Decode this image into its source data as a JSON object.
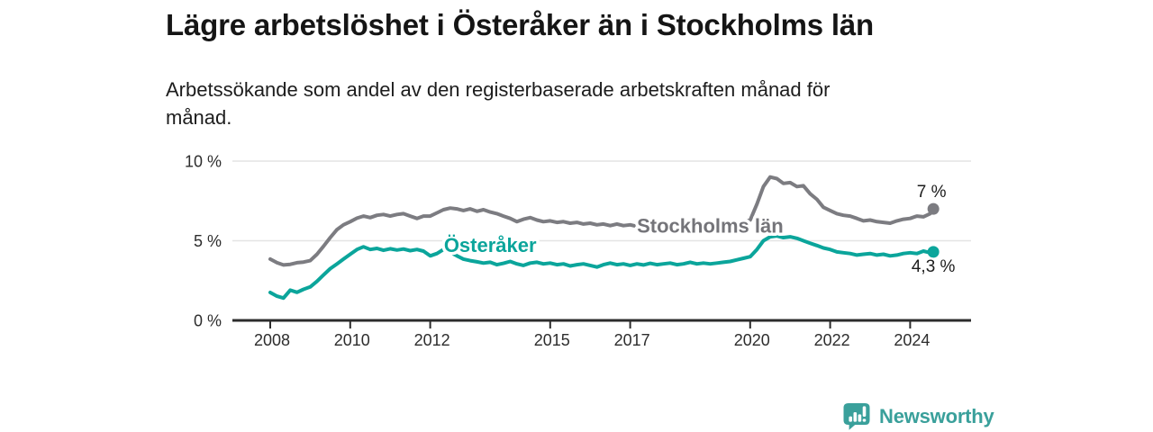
{
  "chart_data": {
    "type": "line",
    "title": "Lägre arbetslöshet i Österåker än i Stockholms län",
    "subtitle": "Arbetssökande som andel av den registerbaserade arbetskraften månad för\nmånad.",
    "unit": "%",
    "xlabel": "",
    "ylabel": "",
    "xlim": [
      2007.05,
      2025.5
    ],
    "ylim": [
      0,
      10
    ],
    "grid": "horizontal",
    "y_ticks": [
      {
        "v": 0,
        "label": "0 %"
      },
      {
        "v": 5,
        "label": "5 %"
      },
      {
        "v": 10,
        "label": "10 %"
      }
    ],
    "x_ticks": [
      {
        "v": 2008,
        "label": "2008"
      },
      {
        "v": 2010,
        "label": "2010"
      },
      {
        "v": 2012,
        "label": "2012"
      },
      {
        "v": 2015,
        "label": "2015"
      },
      {
        "v": 2017,
        "label": "2017"
      },
      {
        "v": 2020,
        "label": "2020"
      },
      {
        "v": 2022,
        "label": "2022"
      },
      {
        "v": 2024,
        "label": "2024"
      }
    ],
    "series": [
      {
        "name": "Stockholms län",
        "color": "#7c7c81",
        "label_color": "#747479",
        "inline_label": {
          "text": "Stockholms län",
          "x": 2019.0,
          "y": 5.5
        },
        "end_dot": true,
        "end_label": {
          "text": "7 %",
          "position": "above"
        },
        "points": [
          [
            2008.0,
            3.85
          ],
          [
            2008.17,
            3.62
          ],
          [
            2008.33,
            3.48
          ],
          [
            2008.5,
            3.52
          ],
          [
            2008.67,
            3.62
          ],
          [
            2008.83,
            3.66
          ],
          [
            2009.0,
            3.75
          ],
          [
            2009.17,
            4.15
          ],
          [
            2009.33,
            4.65
          ],
          [
            2009.5,
            5.2
          ],
          [
            2009.67,
            5.7
          ],
          [
            2009.83,
            6.0
          ],
          [
            2010.0,
            6.2
          ],
          [
            2010.17,
            6.42
          ],
          [
            2010.33,
            6.55
          ],
          [
            2010.5,
            6.45
          ],
          [
            2010.67,
            6.6
          ],
          [
            2010.83,
            6.65
          ],
          [
            2011.0,
            6.55
          ],
          [
            2011.17,
            6.65
          ],
          [
            2011.33,
            6.7
          ],
          [
            2011.5,
            6.55
          ],
          [
            2011.67,
            6.4
          ],
          [
            2011.83,
            6.55
          ],
          [
            2012.0,
            6.55
          ],
          [
            2012.17,
            6.75
          ],
          [
            2012.33,
            6.95
          ],
          [
            2012.5,
            7.05
          ],
          [
            2012.67,
            7.0
          ],
          [
            2012.83,
            6.9
          ],
          [
            2013.0,
            7.0
          ],
          [
            2013.17,
            6.85
          ],
          [
            2013.33,
            6.95
          ],
          [
            2013.5,
            6.8
          ],
          [
            2013.67,
            6.7
          ],
          [
            2013.83,
            6.55
          ],
          [
            2014.0,
            6.4
          ],
          [
            2014.17,
            6.2
          ],
          [
            2014.33,
            6.35
          ],
          [
            2014.5,
            6.45
          ],
          [
            2014.67,
            6.3
          ],
          [
            2014.83,
            6.2
          ],
          [
            2015.0,
            6.25
          ],
          [
            2015.17,
            6.15
          ],
          [
            2015.33,
            6.2
          ],
          [
            2015.5,
            6.1
          ],
          [
            2015.67,
            6.15
          ],
          [
            2015.83,
            6.05
          ],
          [
            2016.0,
            6.1
          ],
          [
            2016.17,
            6.0
          ],
          [
            2016.33,
            6.05
          ],
          [
            2016.5,
            5.95
          ],
          [
            2016.67,
            6.05
          ],
          [
            2016.83,
            5.95
          ],
          [
            2017.0,
            6.0
          ],
          [
            2017.17,
            5.9
          ],
          [
            2017.33,
            5.95
          ],
          [
            2017.5,
            6.0
          ],
          [
            2017.67,
            5.9
          ],
          [
            2017.83,
            5.95
          ],
          [
            2018.0,
            6.0
          ],
          [
            2018.17,
            5.9
          ],
          [
            2018.33,
            5.95
          ],
          [
            2018.5,
            6.05
          ],
          [
            2018.67,
            5.95
          ],
          [
            2018.83,
            6.0
          ],
          [
            2019.0,
            6.05
          ],
          [
            2019.17,
            5.95
          ],
          [
            2019.33,
            6.0
          ],
          [
            2019.5,
            6.1
          ],
          [
            2019.67,
            6.05
          ],
          [
            2019.83,
            6.15
          ],
          [
            2020.0,
            6.3
          ],
          [
            2020.17,
            7.3
          ],
          [
            2020.33,
            8.4
          ],
          [
            2020.5,
            9.0
          ],
          [
            2020.67,
            8.9
          ],
          [
            2020.83,
            8.6
          ],
          [
            2021.0,
            8.65
          ],
          [
            2021.17,
            8.4
          ],
          [
            2021.33,
            8.45
          ],
          [
            2021.5,
            7.95
          ],
          [
            2021.67,
            7.6
          ],
          [
            2021.83,
            7.1
          ],
          [
            2022.0,
            6.9
          ],
          [
            2022.17,
            6.7
          ],
          [
            2022.33,
            6.6
          ],
          [
            2022.5,
            6.55
          ],
          [
            2022.67,
            6.4
          ],
          [
            2022.83,
            6.25
          ],
          [
            2023.0,
            6.3
          ],
          [
            2023.17,
            6.2
          ],
          [
            2023.33,
            6.15
          ],
          [
            2023.5,
            6.1
          ],
          [
            2023.67,
            6.25
          ],
          [
            2023.83,
            6.35
          ],
          [
            2024.0,
            6.4
          ],
          [
            2024.17,
            6.55
          ],
          [
            2024.33,
            6.5
          ],
          [
            2024.5,
            6.7
          ],
          [
            2024.58,
            7.0
          ]
        ]
      },
      {
        "name": "Österåker",
        "color": "#0ba59b",
        "label_color": "#0ba59b",
        "inline_label": {
          "text": "Österåker",
          "x": 2013.5,
          "y": 4.3
        },
        "end_dot": true,
        "end_label": {
          "text": "4,3 %",
          "position": "below"
        },
        "points": [
          [
            2008.0,
            1.75
          ],
          [
            2008.17,
            1.52
          ],
          [
            2008.33,
            1.4
          ],
          [
            2008.5,
            1.9
          ],
          [
            2008.67,
            1.76
          ],
          [
            2008.83,
            1.95
          ],
          [
            2009.0,
            2.1
          ],
          [
            2009.17,
            2.45
          ],
          [
            2009.33,
            2.85
          ],
          [
            2009.5,
            3.25
          ],
          [
            2009.67,
            3.55
          ],
          [
            2009.83,
            3.85
          ],
          [
            2010.0,
            4.15
          ],
          [
            2010.17,
            4.45
          ],
          [
            2010.33,
            4.62
          ],
          [
            2010.5,
            4.45
          ],
          [
            2010.67,
            4.52
          ],
          [
            2010.83,
            4.4
          ],
          [
            2011.0,
            4.5
          ],
          [
            2011.17,
            4.42
          ],
          [
            2011.33,
            4.48
          ],
          [
            2011.5,
            4.38
          ],
          [
            2011.67,
            4.45
          ],
          [
            2011.83,
            4.35
          ],
          [
            2012.0,
            4.05
          ],
          [
            2012.17,
            4.2
          ],
          [
            2012.33,
            4.45
          ],
          [
            2012.5,
            4.28
          ],
          [
            2012.67,
            4.05
          ],
          [
            2012.83,
            3.85
          ],
          [
            2013.0,
            3.75
          ],
          [
            2013.17,
            3.68
          ],
          [
            2013.33,
            3.6
          ],
          [
            2013.5,
            3.65
          ],
          [
            2013.67,
            3.5
          ],
          [
            2013.83,
            3.58
          ],
          [
            2014.0,
            3.7
          ],
          [
            2014.17,
            3.55
          ],
          [
            2014.33,
            3.45
          ],
          [
            2014.5,
            3.6
          ],
          [
            2014.67,
            3.65
          ],
          [
            2014.83,
            3.55
          ],
          [
            2015.0,
            3.6
          ],
          [
            2015.17,
            3.5
          ],
          [
            2015.33,
            3.55
          ],
          [
            2015.5,
            3.42
          ],
          [
            2015.67,
            3.5
          ],
          [
            2015.83,
            3.55
          ],
          [
            2016.0,
            3.45
          ],
          [
            2016.17,
            3.35
          ],
          [
            2016.33,
            3.5
          ],
          [
            2016.5,
            3.6
          ],
          [
            2016.67,
            3.5
          ],
          [
            2016.83,
            3.55
          ],
          [
            2017.0,
            3.45
          ],
          [
            2017.17,
            3.55
          ],
          [
            2017.33,
            3.48
          ],
          [
            2017.5,
            3.58
          ],
          [
            2017.67,
            3.5
          ],
          [
            2017.83,
            3.55
          ],
          [
            2018.0,
            3.6
          ],
          [
            2018.17,
            3.5
          ],
          [
            2018.33,
            3.55
          ],
          [
            2018.5,
            3.65
          ],
          [
            2018.67,
            3.55
          ],
          [
            2018.83,
            3.6
          ],
          [
            2019.0,
            3.55
          ],
          [
            2019.17,
            3.6
          ],
          [
            2019.33,
            3.65
          ],
          [
            2019.5,
            3.7
          ],
          [
            2019.67,
            3.8
          ],
          [
            2019.83,
            3.9
          ],
          [
            2020.0,
            4.0
          ],
          [
            2020.17,
            4.45
          ],
          [
            2020.33,
            5.0
          ],
          [
            2020.5,
            5.25
          ],
          [
            2020.67,
            5.3
          ],
          [
            2020.83,
            5.2
          ],
          [
            2021.0,
            5.25
          ],
          [
            2021.17,
            5.15
          ],
          [
            2021.33,
            5.0
          ],
          [
            2021.5,
            4.85
          ],
          [
            2021.67,
            4.7
          ],
          [
            2021.83,
            4.55
          ],
          [
            2022.0,
            4.45
          ],
          [
            2022.17,
            4.3
          ],
          [
            2022.33,
            4.25
          ],
          [
            2022.5,
            4.2
          ],
          [
            2022.67,
            4.1
          ],
          [
            2022.83,
            4.15
          ],
          [
            2023.0,
            4.2
          ],
          [
            2023.17,
            4.1
          ],
          [
            2023.33,
            4.15
          ],
          [
            2023.5,
            4.05
          ],
          [
            2023.67,
            4.1
          ],
          [
            2023.83,
            4.2
          ],
          [
            2024.0,
            4.25
          ],
          [
            2024.17,
            4.2
          ],
          [
            2024.33,
            4.35
          ],
          [
            2024.5,
            4.25
          ],
          [
            2024.58,
            4.3
          ]
        ]
      }
    ],
    "colors": {
      "grid": "#e4e4e4",
      "axis": "#2c2c2c",
      "tick_text": "#2d2d2d"
    }
  },
  "footer": {
    "brand": "Newsworthy",
    "brand_color": "#3aa09b",
    "logo_icon": "bar-chart-speech-bubble-icon"
  }
}
